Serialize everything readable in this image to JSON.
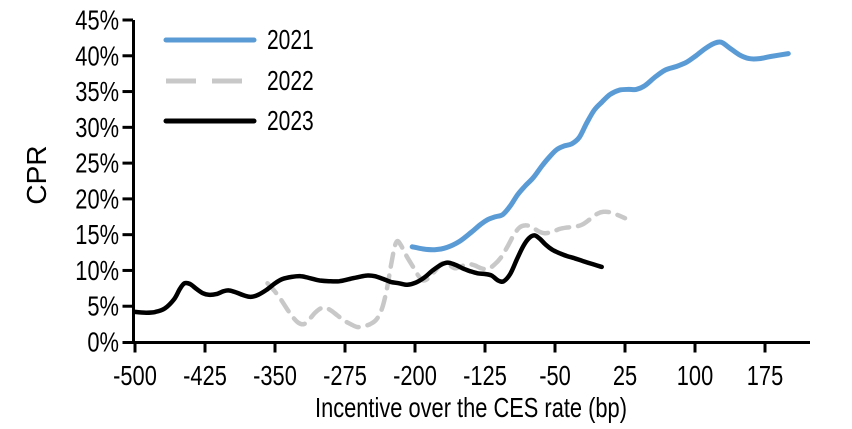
{
  "chart_data": {
    "type": "line",
    "title": "",
    "xlabel": "Incentive over the CES rate (bp)",
    "ylabel": "CPR",
    "grid": false,
    "legend_position": "top-left-inside",
    "x_axis": {
      "min": -500,
      "max": 223,
      "ticks": [
        -500,
        -425,
        -350,
        -275,
        -200,
        -125,
        -50,
        25,
        100,
        175
      ]
    },
    "y_axis": {
      "min": 0,
      "max": 45,
      "tick_step": 5,
      "tick_suffix": "%"
    },
    "axis_color": "#000000",
    "series": [
      {
        "name": "2021",
        "color": "#5B9BD5",
        "line_style": "solid",
        "points": [
          [
            -203,
            13.3
          ],
          [
            -191,
            13.0
          ],
          [
            -179,
            12.9
          ],
          [
            -166,
            13.2
          ],
          [
            -153,
            14.0
          ],
          [
            -140,
            15.3
          ],
          [
            -130,
            16.4
          ],
          [
            -122,
            17.1
          ],
          [
            -114,
            17.5
          ],
          [
            -106,
            17.8
          ],
          [
            -98,
            19.0
          ],
          [
            -90,
            20.6
          ],
          [
            -82,
            21.8
          ],
          [
            -73,
            23.0
          ],
          [
            -64,
            24.6
          ],
          [
            -55,
            26.0
          ],
          [
            -48,
            26.9
          ],
          [
            -40,
            27.4
          ],
          [
            -32,
            27.7
          ],
          [
            -24,
            28.6
          ],
          [
            -16,
            30.6
          ],
          [
            -8,
            32.4
          ],
          [
            0,
            33.5
          ],
          [
            9,
            34.6
          ],
          [
            19,
            35.2
          ],
          [
            29,
            35.3
          ],
          [
            37,
            35.3
          ],
          [
            46,
            35.8
          ],
          [
            57,
            37.0
          ],
          [
            68,
            38.0
          ],
          [
            80,
            38.5
          ],
          [
            91,
            39.1
          ],
          [
            101,
            40.0
          ],
          [
            111,
            41.0
          ],
          [
            120,
            41.7
          ],
          [
            128,
            41.9
          ],
          [
            137,
            41.1
          ],
          [
            148,
            40.1
          ],
          [
            158,
            39.6
          ],
          [
            169,
            39.6
          ],
          [
            181,
            39.9
          ],
          [
            200,
            40.3
          ]
        ]
      },
      {
        "name": "2022",
        "color": "#C8C8C8",
        "line_style": "dashed",
        "points": [
          [
            -358,
            8.2
          ],
          [
            -351,
            7.2
          ],
          [
            -344,
            6.0
          ],
          [
            -337,
            4.6
          ],
          [
            -331,
            3.5
          ],
          [
            -325,
            2.7
          ],
          [
            -319,
            2.5
          ],
          [
            -313,
            3.2
          ],
          [
            -307,
            4.1
          ],
          [
            -301,
            4.7
          ],
          [
            -296,
            4.8
          ],
          [
            -290,
            4.4
          ],
          [
            -283,
            3.7
          ],
          [
            -276,
            3.0
          ],
          [
            -269,
            2.5
          ],
          [
            -262,
            2.1
          ],
          [
            -255,
            2.2
          ],
          [
            -248,
            2.5
          ],
          [
            -241,
            3.2
          ],
          [
            -235,
            4.8
          ],
          [
            -230,
            7.5
          ],
          [
            -226,
            10.5
          ],
          [
            -222,
            13.2
          ],
          [
            -219,
            14.1
          ],
          [
            -215,
            13.5
          ],
          [
            -209,
            12.0
          ],
          [
            -202,
            10.5
          ],
          [
            -196,
            9.2
          ],
          [
            -191,
            8.6
          ],
          [
            -185,
            9.0
          ],
          [
            -178,
            10.0
          ],
          [
            -171,
            11.0
          ],
          [
            -164,
            10.8
          ],
          [
            -157,
            10.3
          ],
          [
            -150,
            10.6
          ],
          [
            -143,
            10.9
          ],
          [
            -136,
            10.7
          ],
          [
            -129,
            10.3
          ],
          [
            -122,
            10.2
          ],
          [
            -115,
            10.8
          ],
          [
            -108,
            11.8
          ],
          [
            -101,
            13.3
          ],
          [
            -94,
            15.0
          ],
          [
            -88,
            16.0
          ],
          [
            -82,
            16.3
          ],
          [
            -75,
            16.1
          ],
          [
            -68,
            15.5
          ],
          [
            -61,
            15.2
          ],
          [
            -53,
            15.4
          ],
          [
            -45,
            15.8
          ],
          [
            -37,
            16.0
          ],
          [
            -29,
            16.1
          ],
          [
            -21,
            16.4
          ],
          [
            -13,
            17.1
          ],
          [
            -5,
            17.9
          ],
          [
            2,
            18.2
          ],
          [
            10,
            18.1
          ],
          [
            18,
            17.7
          ],
          [
            25,
            17.3
          ]
        ]
      },
      {
        "name": "2023",
        "color": "#000000",
        "line_style": "solid",
        "points": [
          [
            -500,
            4.2
          ],
          [
            -488,
            4.1
          ],
          [
            -478,
            4.2
          ],
          [
            -468,
            4.7
          ],
          [
            -458,
            6.0
          ],
          [
            -452,
            7.4
          ],
          [
            -447,
            8.2
          ],
          [
            -441,
            8.1
          ],
          [
            -434,
            7.4
          ],
          [
            -427,
            6.8
          ],
          [
            -421,
            6.6
          ],
          [
            -413,
            6.7
          ],
          [
            -405,
            7.1
          ],
          [
            -399,
            7.2
          ],
          [
            -391,
            6.9
          ],
          [
            -383,
            6.5
          ],
          [
            -376,
            6.3
          ],
          [
            -368,
            6.6
          ],
          [
            -359,
            7.3
          ],
          [
            -350,
            8.2
          ],
          [
            -342,
            8.8
          ],
          [
            -332,
            9.1
          ],
          [
            -322,
            9.2
          ],
          [
            -312,
            8.9
          ],
          [
            -302,
            8.6
          ],
          [
            -292,
            8.5
          ],
          [
            -281,
            8.5
          ],
          [
            -270,
            8.8
          ],
          [
            -260,
            9.1
          ],
          [
            -251,
            9.3
          ],
          [
            -243,
            9.2
          ],
          [
            -234,
            8.8
          ],
          [
            -226,
            8.4
          ],
          [
            -217,
            8.2
          ],
          [
            -208,
            8.0
          ],
          [
            -199,
            8.3
          ],
          [
            -190,
            9.0
          ],
          [
            -181,
            10.0
          ],
          [
            -172,
            10.8
          ],
          [
            -165,
            11.1
          ],
          [
            -157,
            10.8
          ],
          [
            -149,
            10.3
          ],
          [
            -141,
            9.9
          ],
          [
            -133,
            9.6
          ],
          [
            -125,
            9.5
          ],
          [
            -118,
            9.3
          ],
          [
            -111,
            8.6
          ],
          [
            -105,
            8.5
          ],
          [
            -98,
            9.5
          ],
          [
            -91,
            11.5
          ],
          [
            -84,
            13.4
          ],
          [
            -78,
            14.5
          ],
          [
            -72,
            14.9
          ],
          [
            -66,
            14.4
          ],
          [
            -60,
            13.6
          ],
          [
            -53,
            12.9
          ],
          [
            -45,
            12.4
          ],
          [
            -37,
            12.0
          ],
          [
            -29,
            11.7
          ],
          [
            -20,
            11.3
          ],
          [
            -10,
            10.9
          ],
          [
            0,
            10.5
          ]
        ]
      }
    ]
  }
}
